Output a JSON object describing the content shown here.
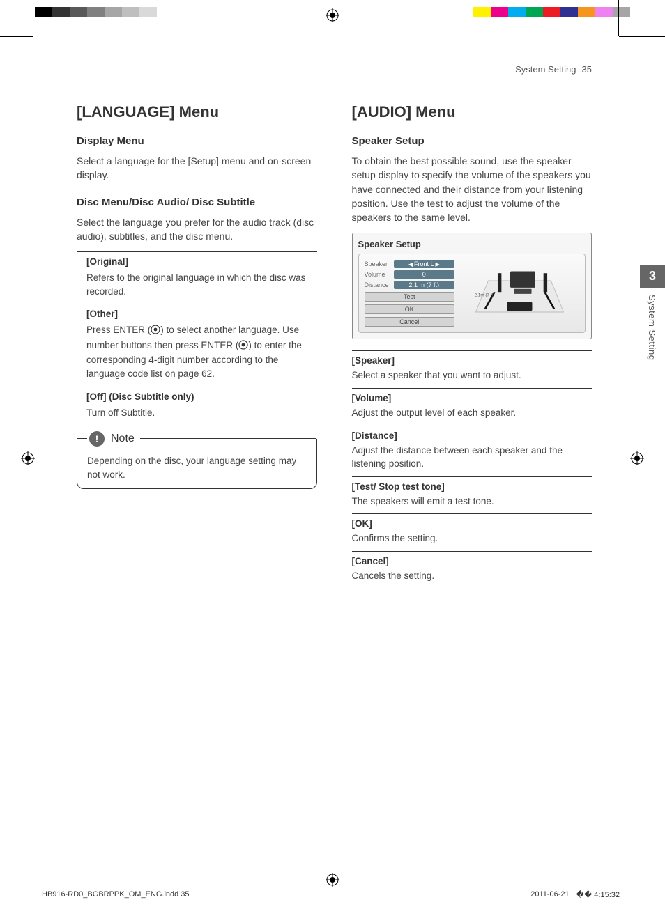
{
  "colorbar_left": [
    "#000000",
    "#333333",
    "#595959",
    "#808080",
    "#a6a6a6",
    "#bfbfbf",
    "#d9d9d9",
    "#ffffff"
  ],
  "colorbar_right": [
    "#fff200",
    "#ec008c",
    "#00aeef",
    "#00a651",
    "#ed1c24",
    "#2e3192",
    "#f7941e",
    "#ee82ee",
    "#a6a6a6"
  ],
  "header": {
    "section": "System Setting",
    "page": "35"
  },
  "side_tab": {
    "chapter": "3",
    "label": "System Setting"
  },
  "left_col": {
    "menu_title": "[LANGUAGE] Menu",
    "display_menu": {
      "title": "Display Menu",
      "text": "Select a language for the [Setup] menu and on-screen display."
    },
    "disc_menu": {
      "title": "Disc Menu/Disc Audio/ Disc Subtitle",
      "text": "Select the language you prefer for the audio track (disc audio), subtitles, and the disc menu."
    },
    "options": {
      "original": {
        "title": "[Original]",
        "text": "Refers to the original language in which the disc was recorded."
      },
      "other": {
        "title": "[Other]",
        "text_a": "Press ENTER (",
        "text_b": ") to select another language. Use number buttons then press ENTER (",
        "text_c": ") to enter the corresponding 4-digit number according to the language code list on page 62."
      },
      "off": {
        "title": "[Off] (Disc Subtitle only)",
        "text": "Turn off Subtitle."
      }
    },
    "note": {
      "title": "Note",
      "text": "Depending on the disc, your language setting may not work."
    }
  },
  "right_col": {
    "menu_title": "[AUDIO] Menu",
    "speaker_setup": {
      "title": "Speaker Setup",
      "text": "To obtain the best possible sound, use the speaker setup display to specify the volume of the speakers you have connected and their distance from your listening position. Use the test to adjust the volume of the speakers to the same level."
    },
    "speaker_ui": {
      "caption": "Speaker Setup",
      "rows": {
        "speaker": {
          "label": "Speaker",
          "value": "Front L"
        },
        "volume": {
          "label": "Volume",
          "value": "0"
        },
        "distance": {
          "label": "Distance",
          "value": "2.1 m (7 ft)"
        }
      },
      "buttons": {
        "test": "Test",
        "ok": "OK",
        "cancel": "Cancel"
      },
      "distance_tag": "2.1m (7 ft)"
    },
    "options": {
      "speaker": {
        "title": "[Speaker]",
        "text": "Select a speaker that you want to adjust."
      },
      "volume": {
        "title": "[Volume]",
        "text": "Adjust the output level of each speaker."
      },
      "distance": {
        "title": "[Distance]",
        "text": "Adjust the distance between each speaker and the listening position."
      },
      "test": {
        "title": "[Test/ Stop test tone]",
        "text": "The speakers will emit a test tone."
      },
      "ok": {
        "title": "[OK]",
        "text": "Confirms the setting."
      },
      "cancel": {
        "title": "[Cancel]",
        "text": "Cancels the setting."
      }
    }
  },
  "footer": {
    "left": "HB916-RD0_BGBRPPK_OM_ENG.indd   35",
    "date": "2011-06-21",
    "time": "�� 4:15:32"
  }
}
